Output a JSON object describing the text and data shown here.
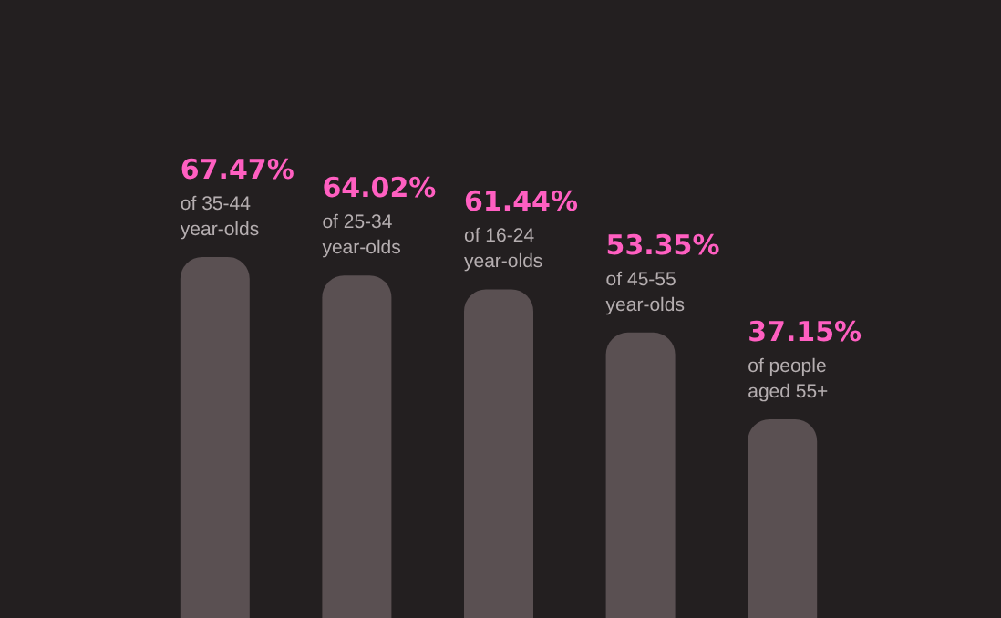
{
  "chart_data": {
    "type": "bar",
    "categories": [
      "of 35-44 year-olds",
      "of 25-34 year-olds",
      "of 16-24 year-olds",
      "of 45-55 year-olds",
      "of people aged 55+"
    ],
    "values": [
      67.47,
      64.02,
      61.44,
      53.35,
      37.15
    ],
    "value_labels": [
      "67.47%",
      "64.02%",
      "61.44%",
      "53.35%",
      "37.15%"
    ],
    "color": "#5a5052",
    "tick_labels": false
  }
}
